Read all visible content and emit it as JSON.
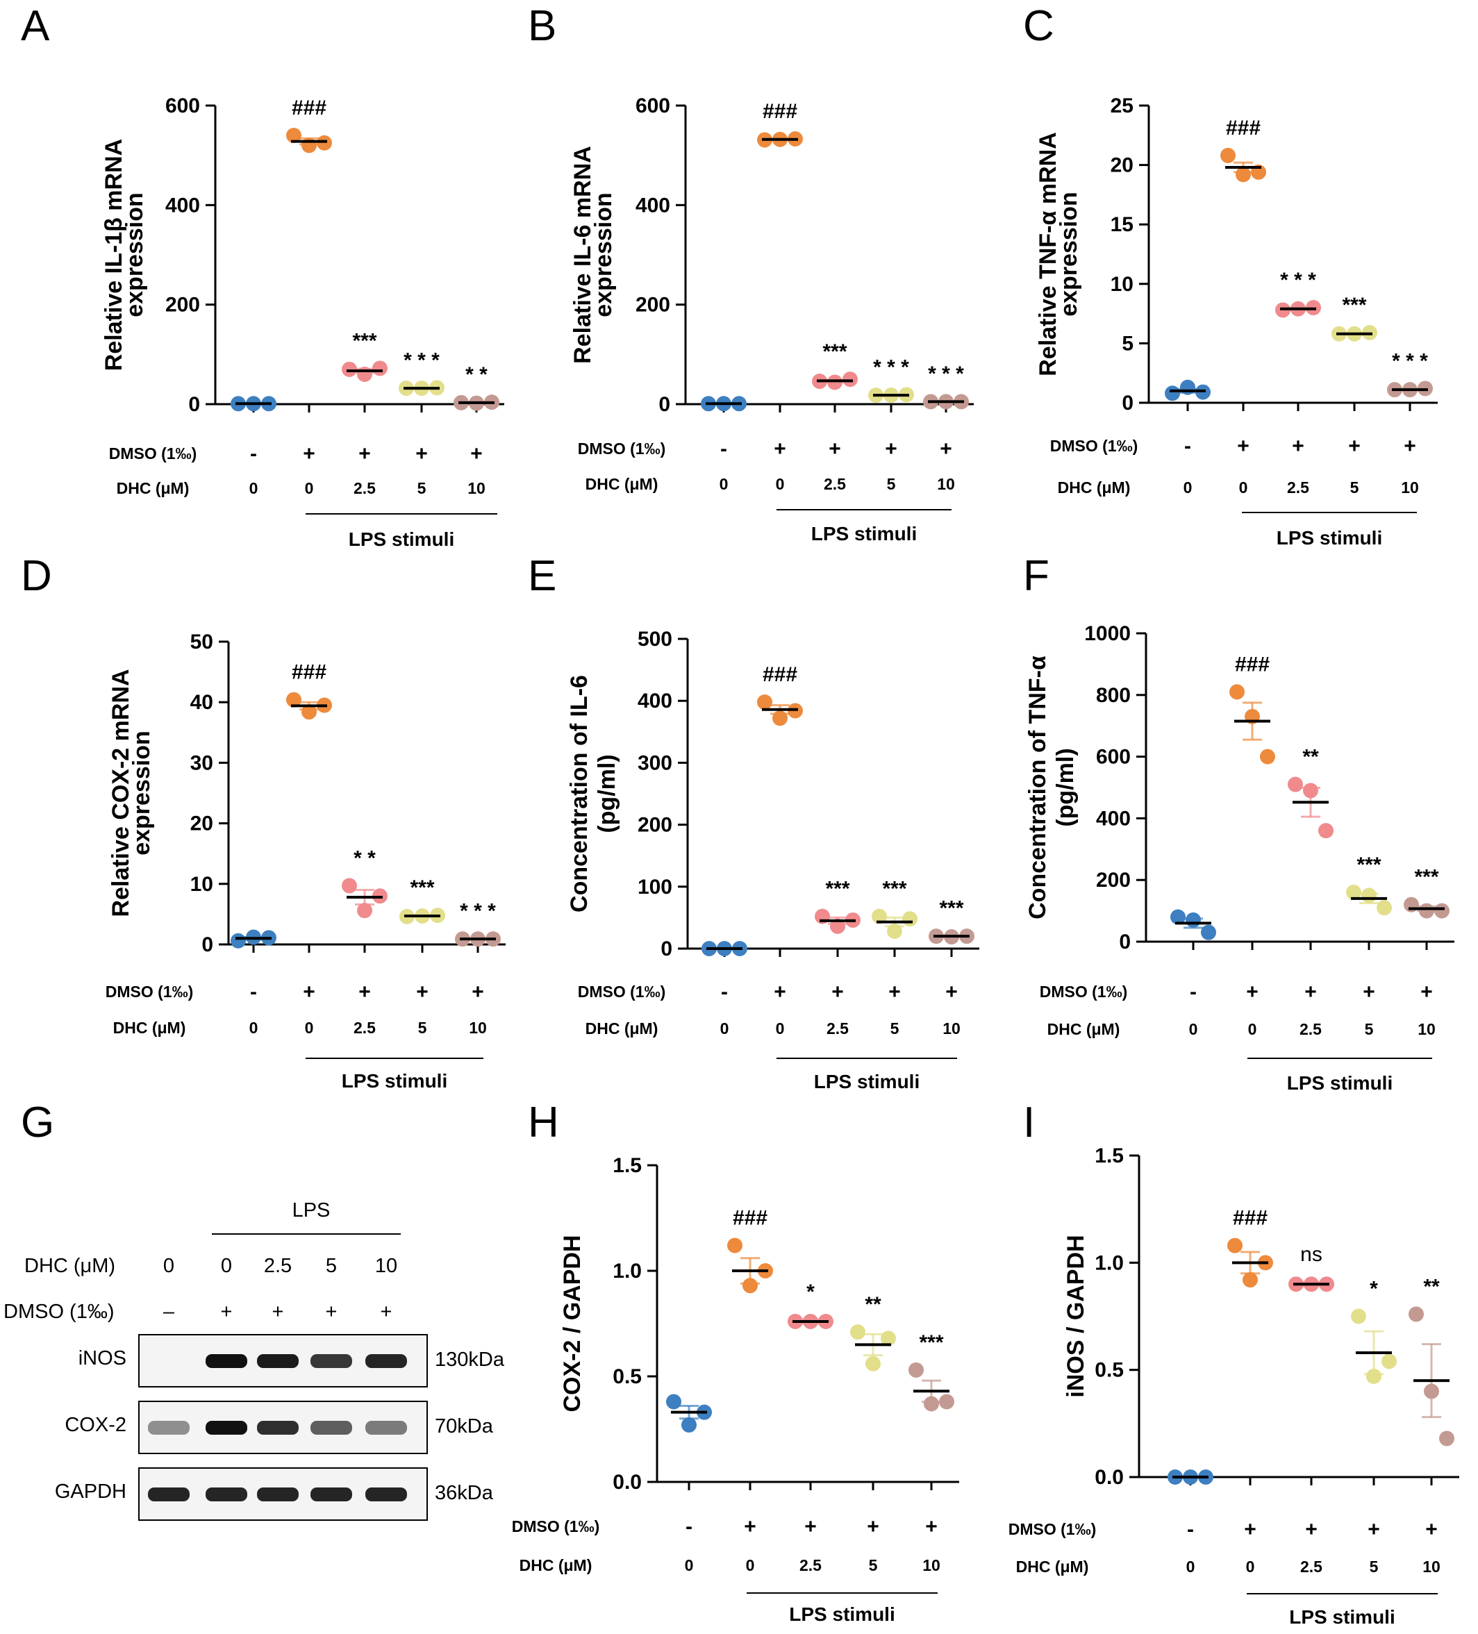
{
  "colors": {
    "ctrl": "#3d7fc0",
    "lps": "#ed8a3c",
    "dhc2_5": "#f08a8c",
    "dhc5": "#e2df8a",
    "dhc10": "#c39a92"
  },
  "condition_rows": {
    "dmso_label": "DMSO (1‰)",
    "dhc_label": "DHC (μM)",
    "dmso": [
      "-",
      "+",
      "+",
      "+",
      "+"
    ],
    "dhc": [
      "0",
      "0",
      "2.5",
      "5",
      "10"
    ],
    "stim_label": "LPS stimuli"
  },
  "blot": {
    "letter": "G",
    "lps_label": "LPS",
    "dhc_label": "DHC (μM)",
    "dmso_label": "DMSO (1‰)",
    "dhc": [
      "0",
      "0",
      "2.5",
      "5",
      "10"
    ],
    "dmso": [
      "–",
      "+",
      "+",
      "+",
      "+"
    ],
    "bands": [
      {
        "name": "iNOS",
        "size": "130kDa",
        "intensity": [
          0.0,
          1.0,
          0.95,
          0.8,
          0.9
        ]
      },
      {
        "name": "COX-2",
        "size": "70kDa",
        "intensity": [
          0.35,
          1.0,
          0.85,
          0.6,
          0.45
        ]
      },
      {
        "name": "GAPDH",
        "size": "36kDa",
        "intensity": [
          0.9,
          0.9,
          0.9,
          0.9,
          0.9
        ]
      }
    ]
  },
  "chart_data": [
    {
      "letter": "A",
      "type": "scatter",
      "ylabel": [
        "Relative IL-1β mRNA",
        "expression"
      ],
      "ylim": [
        0,
        600
      ],
      "yticks": [
        0,
        200,
        400,
        600
      ],
      "groups": [
        {
          "points": [
            1,
            1,
            1
          ],
          "mean": 1,
          "sem": 0,
          "sig": ""
        },
        {
          "points": [
            540,
            520,
            525
          ],
          "mean": 528,
          "sem": 6,
          "sig": "###"
        },
        {
          "points": [
            70,
            60,
            72
          ],
          "mean": 67,
          "sem": 4,
          "sig": "***"
        },
        {
          "points": [
            32,
            32,
            33
          ],
          "mean": 32,
          "sem": 1,
          "sig": "* * *"
        },
        {
          "points": [
            3,
            2,
            4
          ],
          "mean": 3,
          "sem": 1,
          "sig": "* *"
        }
      ]
    },
    {
      "letter": "B",
      "type": "scatter",
      "ylabel": [
        "Relative IL-6 mRNA",
        "expression"
      ],
      "ylim": [
        0,
        600
      ],
      "yticks": [
        0,
        200,
        400,
        600
      ],
      "groups": [
        {
          "points": [
            1,
            1,
            1
          ],
          "mean": 1,
          "sem": 0,
          "sig": ""
        },
        {
          "points": [
            531,
            532,
            533
          ],
          "mean": 532,
          "sem": 1,
          "sig": "###"
        },
        {
          "points": [
            46,
            44,
            50
          ],
          "mean": 47,
          "sem": 2,
          "sig": "***"
        },
        {
          "points": [
            18,
            18,
            19
          ],
          "mean": 18,
          "sem": 0.5,
          "sig": "* * *"
        },
        {
          "points": [
            5,
            5,
            5
          ],
          "mean": 5,
          "sem": 0.3,
          "sig": "* * *"
        }
      ]
    },
    {
      "letter": "C",
      "type": "scatter",
      "ylabel": [
        "Relative TNF-α mRNA",
        "expression"
      ],
      "ylim": [
        0,
        25
      ],
      "yticks": [
        0,
        5,
        10,
        15,
        20,
        25
      ],
      "groups": [
        {
          "points": [
            0.8,
            1.3,
            0.9
          ],
          "mean": 1.0,
          "sem": 0.15,
          "sig": ""
        },
        {
          "points": [
            20.8,
            19.2,
            19.4
          ],
          "mean": 19.8,
          "sem": 0.4,
          "sig": "###"
        },
        {
          "points": [
            7.8,
            7.9,
            8.0
          ],
          "mean": 7.9,
          "sem": 0.1,
          "sig": "* * *"
        },
        {
          "points": [
            5.8,
            5.8,
            5.9
          ],
          "mean": 5.8,
          "sem": 0.05,
          "sig": "***"
        },
        {
          "points": [
            1.1,
            1.1,
            1.2
          ],
          "mean": 1.1,
          "sem": 0.05,
          "sig": "* * *"
        }
      ]
    },
    {
      "letter": "D",
      "type": "scatter",
      "ylabel": [
        "Relative COX-2 mRNA",
        "expression"
      ],
      "ylim": [
        0,
        50
      ],
      "yticks": [
        0,
        10,
        20,
        30,
        40,
        50
      ],
      "groups": [
        {
          "points": [
            0.6,
            1.2,
            1.1
          ],
          "mean": 1.0,
          "sem": 0.2,
          "sig": ""
        },
        {
          "points": [
            40.4,
            38.4,
            39.5
          ],
          "mean": 39.4,
          "sem": 0.6,
          "sig": "###"
        },
        {
          "points": [
            9.7,
            5.6,
            8.0
          ],
          "mean": 7.8,
          "sem": 1.2,
          "sig": "* *"
        },
        {
          "points": [
            4.6,
            4.7,
            4.8
          ],
          "mean": 4.7,
          "sem": 0.1,
          "sig": "***"
        },
        {
          "points": [
            0.9,
            0.9,
            0.9
          ],
          "mean": 0.9,
          "sem": 0.05,
          "sig": "* * *"
        }
      ]
    },
    {
      "letter": "E",
      "type": "scatter",
      "ylabel": [
        "Concentration of IL-6",
        "(pg/ml)"
      ],
      "ylim": [
        0,
        500
      ],
      "yticks": [
        0,
        100,
        200,
        300,
        400,
        500
      ],
      "groups": [
        {
          "points": [
            0,
            0,
            0
          ],
          "mean": 0,
          "sem": 0,
          "sig": ""
        },
        {
          "points": [
            398,
            372,
            384
          ],
          "mean": 386,
          "sem": 7,
          "sig": "###"
        },
        {
          "points": [
            52,
            36,
            46
          ],
          "mean": 45,
          "sem": 5,
          "sig": "***"
        },
        {
          "points": [
            52,
            28,
            48
          ],
          "mean": 43,
          "sem": 7,
          "sig": "***"
        },
        {
          "points": [
            20,
            19,
            20
          ],
          "mean": 20,
          "sem": 0.5,
          "sig": "***"
        }
      ]
    },
    {
      "letter": "F",
      "type": "scatter",
      "ylabel": [
        "Concentration of TNF-α",
        "(pg/ml)"
      ],
      "ylim": [
        0,
        1000
      ],
      "yticks": [
        0,
        200,
        400,
        600,
        800,
        1000
      ],
      "groups": [
        {
          "points": [
            80,
            70,
            30
          ],
          "mean": 60,
          "sem": 15,
          "sig": ""
        },
        {
          "points": [
            810,
            730,
            600
          ],
          "mean": 715,
          "sem": 60,
          "sig": "###"
        },
        {
          "points": [
            510,
            490,
            360
          ],
          "mean": 452,
          "sem": 47,
          "sig": "**"
        },
        {
          "points": [
            160,
            150,
            110
          ],
          "mean": 140,
          "sem": 15,
          "sig": "***"
        },
        {
          "points": [
            120,
            100,
            100
          ],
          "mean": 107,
          "sem": 7,
          "sig": "***"
        }
      ]
    },
    {
      "letter": "H",
      "type": "scatter",
      "ylabel": [
        "COX-2 / GAPDH"
      ],
      "ylim": [
        0,
        1.5
      ],
      "yticks": [
        "0.0",
        "0.5",
        "1.0",
        "1.5"
      ],
      "groups": [
        {
          "points": [
            0.38,
            0.27,
            0.33
          ],
          "mean": 0.33,
          "sem": 0.03,
          "sig": ""
        },
        {
          "points": [
            1.12,
            0.93,
            1.0
          ],
          "mean": 1.0,
          "sem": 0.06,
          "sig": "###"
        },
        {
          "points": [
            0.76,
            0.76,
            0.76
          ],
          "mean": 0.76,
          "sem": 0.01,
          "sig": "*"
        },
        {
          "points": [
            0.71,
            0.56,
            0.68
          ],
          "mean": 0.65,
          "sem": 0.05,
          "sig": "**"
        },
        {
          "points": [
            0.53,
            0.37,
            0.38
          ],
          "mean": 0.43,
          "sem": 0.05,
          "sig": "***"
        }
      ]
    },
    {
      "letter": "I",
      "type": "scatter",
      "ylabel": [
        "iNOS / GAPDH"
      ],
      "ylim": [
        0,
        1.5
      ],
      "yticks": [
        "0.0",
        "0.5",
        "1.0",
        "1.5"
      ],
      "ns_label": "ns",
      "groups": [
        {
          "points": [
            0,
            0,
            0
          ],
          "mean": 0,
          "sem": 0,
          "sig": ""
        },
        {
          "points": [
            1.08,
            0.92,
            1.0
          ],
          "mean": 1.0,
          "sem": 0.05,
          "sig": "###"
        },
        {
          "points": [
            0.9,
            0.9,
            0.9
          ],
          "mean": 0.9,
          "sem": 0.01,
          "sig": "ns"
        },
        {
          "points": [
            0.75,
            0.47,
            0.54
          ],
          "mean": 0.58,
          "sem": 0.1,
          "sig": "*"
        },
        {
          "points": [
            0.76,
            0.4,
            0.18
          ],
          "mean": 0.45,
          "sem": 0.17,
          "sig": "**"
        }
      ]
    }
  ]
}
